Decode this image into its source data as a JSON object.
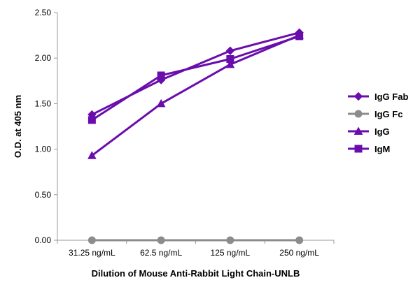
{
  "chart_data": {
    "type": "line",
    "title": "",
    "xlabel": "Dilution of Mouse Anti-Rabbit Light Chain-UNLB",
    "ylabel": "O.D. at 405 nm",
    "categories": [
      "31.25 ng/mL",
      "62.5 ng/mL",
      "125 ng/mL",
      "250 ng/mL"
    ],
    "ylim": [
      0,
      2.5
    ],
    "yticks": [
      "0.00",
      "0.50",
      "1.00",
      "1.50",
      "2.00",
      "2.50"
    ],
    "grid": false,
    "legend_position": "right",
    "series": [
      {
        "name": "IgG Fab",
        "values": [
          1.38,
          1.76,
          2.08,
          2.28
        ],
        "color": "#6a0dad",
        "marker": "diamond"
      },
      {
        "name": "IgG Fc",
        "values": [
          0.0,
          0.0,
          0.0,
          0.0
        ],
        "color": "#8c8c8c",
        "marker": "circle"
      },
      {
        "name": "IgG",
        "values": [
          0.93,
          1.5,
          1.93,
          2.25
        ],
        "color": "#6a0dad",
        "marker": "triangle"
      },
      {
        "name": "IgM",
        "values": [
          1.32,
          1.81,
          1.99,
          2.24
        ],
        "color": "#6a0dad",
        "marker": "square"
      }
    ]
  }
}
